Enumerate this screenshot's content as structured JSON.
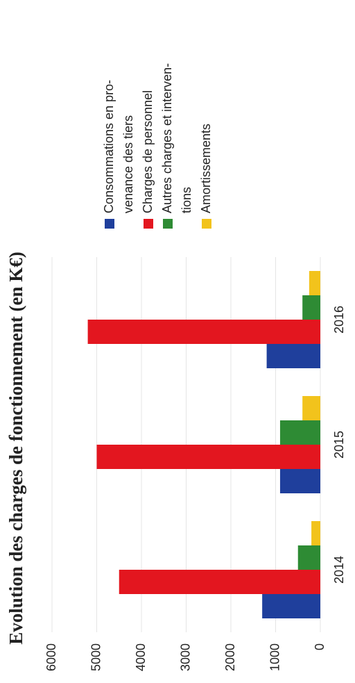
{
  "chart_data": {
    "type": "bar",
    "title": "Evolution des charges de fonctionnement (en K€)",
    "categories": [
      "2014",
      "2015",
      "2016"
    ],
    "series": [
      {
        "name": "Consommations en pro-\nvenance des tiers",
        "color": "#1f3f9c",
        "values": [
          1300,
          900,
          1200
        ]
      },
      {
        "name": "Charges de personnel",
        "color": "#e3161f",
        "values": [
          4500,
          5000,
          5200
        ]
      },
      {
        "name": "Autres charges et interven-\ntions",
        "color": "#2e8b34",
        "values": [
          500,
          900,
          400
        ]
      },
      {
        "name": "Amortissements",
        "color": "#f2c31c",
        "values": [
          200,
          400,
          250
        ]
      }
    ],
    "ylim": [
      0,
      6000
    ],
    "yticks": [
      0,
      1000,
      2000,
      3000,
      4000,
      5000,
      6000
    ],
    "grid": true,
    "legend": "right"
  }
}
